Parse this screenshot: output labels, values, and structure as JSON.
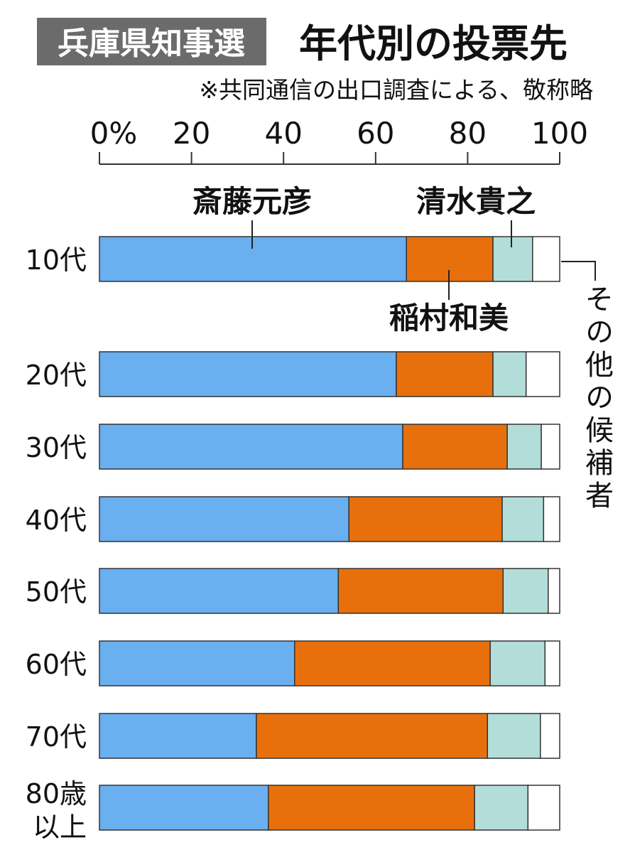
{
  "chart_data": {
    "type": "bar",
    "orientation": "horizontal-stacked",
    "tag": "兵庫県知事選",
    "title": "年代別の投票先",
    "subtitle": "※共同通信の出口調査による、敬称略",
    "xlim": [
      0,
      100
    ],
    "xticks": [
      "0%",
      "20",
      "40",
      "60",
      "80",
      "100"
    ],
    "categories": [
      "10代",
      "20代",
      "30代",
      "40代",
      "50代",
      "60代",
      "70代",
      "80歳以上"
    ],
    "series": [
      {
        "name": "斎藤元彦",
        "color": "#6aaff0",
        "values": [
          66.7,
          64.5,
          65.9,
          54.2,
          51.9,
          42.4,
          34.1,
          36.7
        ]
      },
      {
        "name": "稲村和美",
        "color": "#e8700c",
        "values": [
          18.8,
          21.0,
          22.7,
          33.3,
          35.8,
          42.5,
          50.2,
          44.8
        ]
      },
      {
        "name": "清水貴之",
        "color": "#b3ddd9",
        "values": [
          8.6,
          7.2,
          7.4,
          9.0,
          9.8,
          11.9,
          11.5,
          11.6
        ]
      },
      {
        "name": "その他の候補者",
        "color": "#ffffff",
        "values": [
          5.9,
          7.3,
          4.0,
          3.5,
          2.5,
          3.2,
          4.2,
          6.9
        ]
      }
    ],
    "colors": {
      "tag_bg": "#6b6b6b",
      "tag_text": "#ffffff"
    }
  }
}
